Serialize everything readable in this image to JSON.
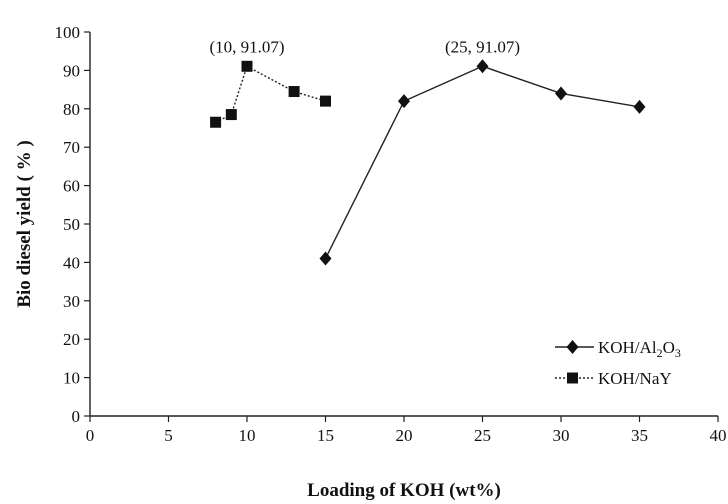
{
  "chart_data": {
    "type": "line",
    "xlabel": "Loading of KOH  (wt%)",
    "ylabel": "Bio diesel yield ( % )",
    "xlim": [
      0,
      40
    ],
    "ylim": [
      0,
      100
    ],
    "xticks": [
      0,
      5,
      10,
      15,
      20,
      25,
      30,
      35,
      40
    ],
    "yticks": [
      0,
      10,
      20,
      30,
      40,
      50,
      60,
      70,
      80,
      90,
      100
    ],
    "grid": false,
    "legend_position": "bottom-right",
    "series": [
      {
        "name": "KOH/Al₂O₃",
        "marker": "diamond",
        "line": "solid",
        "x": [
          15,
          20,
          25,
          30,
          35
        ],
        "y": [
          41,
          82,
          91.07,
          84,
          80.5
        ]
      },
      {
        "name": "KOH/NaY",
        "marker": "square",
        "line": "dashed",
        "x": [
          8,
          9,
          10,
          13,
          15
        ],
        "y": [
          76.5,
          78.5,
          91.07,
          84.5,
          82
        ]
      }
    ],
    "annotations": [
      {
        "text": "(10, 91.07)",
        "x": 10,
        "y": 91.07
      },
      {
        "text": "(25, 91.07)",
        "x": 25,
        "y": 91.07
      }
    ]
  }
}
